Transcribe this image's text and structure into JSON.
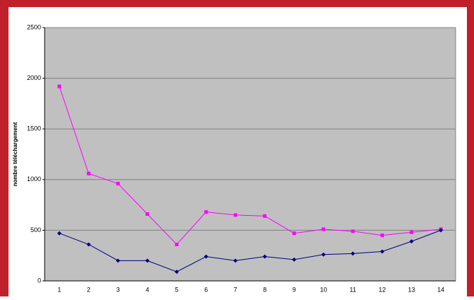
{
  "chart_data": {
    "type": "line",
    "y_label": "nombre téléchargement",
    "categories": [
      "1",
      "2",
      "3",
      "4",
      "5",
      "6",
      "7",
      "8",
      "9",
      "10",
      "11",
      "12",
      "13",
      "14"
    ],
    "series": [
      {
        "color": "#ff00ff",
        "marker": "square",
        "values": [
          1920,
          1060,
          960,
          660,
          360,
          680,
          650,
          640,
          470,
          510,
          490,
          450,
          480,
          510
        ]
      },
      {
        "color": "#000080",
        "marker": "diamond",
        "values": [
          470,
          360,
          200,
          200,
          90,
          240,
          200,
          240,
          210,
          260,
          270,
          290,
          390,
          500
        ]
      }
    ],
    "ylim": [
      0,
      2500
    ],
    "yticks": [
      0,
      500,
      1000,
      1500,
      2000,
      2500
    ],
    "grid": true
  }
}
